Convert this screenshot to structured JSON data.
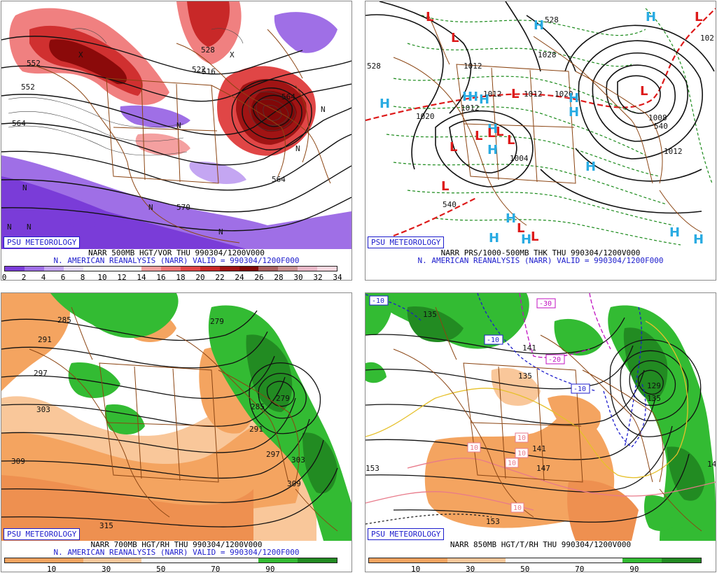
{
  "panels": [
    {
      "id": "500mb",
      "badge": "PSU METEOROLOGY",
      "caption1": "NARR 500MB HGT/VOR THU 990304/1200V000",
      "caption2": "N. AMERICAN REANALYSIS (NARR) VALID = 990304/1200F000",
      "colorbar": [
        "#7a3cd8",
        "#9f6fe6",
        "#c4a6f2",
        "#e6dcf8",
        "#ffffff",
        "#ffffff",
        "#ffffff",
        "#f4a0a0",
        "#ee7474",
        "#e04646",
        "#c82828",
        "#a01414",
        "#800808",
        "#a86060",
        "#c89090",
        "#e8b8c8",
        "#f8d8e0"
      ],
      "ticks": [
        "0",
        "2",
        "4",
        "6",
        "8",
        "10",
        "12",
        "14",
        "16",
        "18",
        "20",
        "22",
        "24",
        "26",
        "28",
        "30",
        "32",
        "34"
      ],
      "contour_labels": [
        "552",
        "528",
        "552",
        "564",
        "516",
        "522",
        "564",
        "570",
        "564"
      ],
      "symbols": [
        "N",
        "N",
        "N",
        "N",
        "N",
        "N",
        "N",
        "N",
        "X",
        "X"
      ]
    },
    {
      "id": "sfc",
      "badge": "PSU METEOROLOGY",
      "caption1": "NARR PRS/1000-500MB THK THU 990304/1200V000",
      "caption2": "N. AMERICAN REANALYSIS (NARR) VALID = 990304/1200F000",
      "contour_labels": [
        "528",
        "1012",
        "1012",
        "1012",
        "1012",
        "1020",
        "1004",
        "1028",
        "1020",
        "1008",
        "1012",
        "540",
        "528",
        "540",
        "102"
      ],
      "highs": [
        "H",
        "H",
        "H",
        "H",
        "H",
        "H",
        "H",
        "H",
        "H",
        "H",
        "H",
        "H",
        "H",
        "H",
        "H",
        "H"
      ],
      "lows": [
        "L",
        "L",
        "L",
        "L",
        "L",
        "L",
        "L",
        "L",
        "L",
        "L",
        "L",
        "L",
        "L"
      ]
    },
    {
      "id": "700mb",
      "badge": "PSU METEOROLOGY",
      "caption1": "NARR 700MB HGT/RH THU 990304/1200V000",
      "caption2": "N. AMERICAN REANALYSIS (NARR) VALID = 990304/1200F000",
      "colorbar": [
        "#f4a460",
        "#f4a460",
        "#f4a460",
        "#f4a460",
        "#f9c79a",
        "#f9c79a",
        "#f9c79a",
        "#ffffff",
        "#ffffff",
        "#ffffff",
        "#ffffff",
        "#ffffff",
        "#ffffff",
        "#33bb33",
        "#33bb33",
        "#228b22",
        "#228b22"
      ],
      "ticks": [
        "10",
        "30",
        "50",
        "70",
        "90"
      ],
      "contour_labels": [
        "285",
        "279",
        "291",
        "297",
        "303",
        "309",
        "315",
        "285",
        "291",
        "297",
        "303",
        "309",
        "279"
      ]
    },
    {
      "id": "850mb",
      "badge": "PSU METEOROLOGY",
      "caption1": "NARR 850MB HGT/T/RH THU 990304/1200V000",
      "caption2": "",
      "colorbar": [
        "#f4a460",
        "#f4a460",
        "#f4a460",
        "#f4a460",
        "#f9c79a",
        "#f9c79a",
        "#f9c79a",
        "#ffffff",
        "#ffffff",
        "#ffffff",
        "#ffffff",
        "#ffffff",
        "#ffffff",
        "#33bb33",
        "#33bb33",
        "#228b22",
        "#228b22"
      ],
      "ticks": [
        "10",
        "30",
        "50",
        "70",
        "90"
      ],
      "contour_labels": [
        "135",
        "141",
        "135",
        "153",
        "153",
        "147",
        "141",
        "135",
        "129",
        "14"
      ],
      "temp_labels": [
        "-10",
        "-30",
        "-20",
        "-10",
        "-10",
        "10",
        "10",
        "10",
        "10",
        "10"
      ]
    }
  ]
}
